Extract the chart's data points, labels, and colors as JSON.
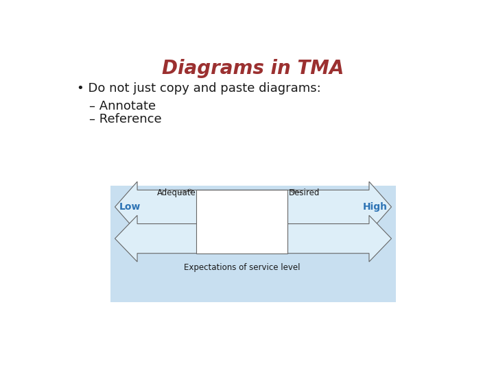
{
  "title": "Diagrams in TMA",
  "title_color": "#9B3030",
  "title_fontsize": 20,
  "background_color": "#ffffff",
  "bullet_text": "Do not just copy and paste diagrams:",
  "sub_bullets": [
    "– Annotate",
    "– Reference"
  ],
  "text_color": "#1a1a1a",
  "text_fontsize": 13,
  "diagram_bg_color": "#C8DFF0",
  "arrow_color": "#666666",
  "box_color": "#ffffff",
  "box_gradient_color": "#ddeef8",
  "low_high_color": "#2E74B5",
  "label_adequate": "Adequate",
  "label_desired": "Desired",
  "label_low": "Low",
  "label_high": "High",
  "label_expectations": "Expectations of service level"
}
